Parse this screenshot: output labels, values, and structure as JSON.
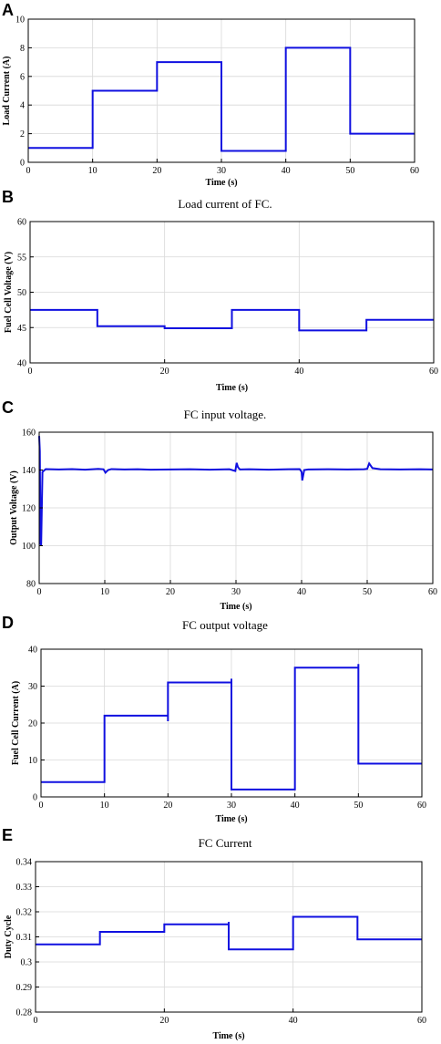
{
  "chart_data": [
    {
      "type": "line",
      "panel": "A",
      "caption": "Load current of FC.",
      "xlabel": "Time (s)",
      "ylabel": "Load Current (A)",
      "xlim": [
        0,
        60
      ],
      "ylim": [
        0,
        10
      ],
      "xticks": [
        0,
        10,
        20,
        30,
        40,
        50,
        60
      ],
      "yticks": [
        0,
        2,
        4,
        6,
        8,
        10
      ],
      "grid": true,
      "series": [
        {
          "x": [
            0,
            10,
            10,
            20,
            20,
            30,
            30,
            40,
            40,
            50,
            50,
            60
          ],
          "y": [
            1,
            1,
            5,
            5,
            7,
            7,
            0.8,
            0.8,
            8,
            8,
            2,
            2
          ]
        }
      ]
    },
    {
      "type": "line",
      "panel": "B",
      "caption": "FC input voltage.",
      "xlabel": "Time (s)",
      "ylabel": "Fuel Cell Voltage (V)",
      "xlim": [
        0,
        60
      ],
      "ylim": [
        40,
        60
      ],
      "xticks": [
        0,
        20,
        40,
        60
      ],
      "yticks": [
        40,
        45,
        50,
        55,
        60
      ],
      "grid": true,
      "series": [
        {
          "x": [
            0,
            10,
            10,
            20,
            20,
            30,
            30,
            40,
            40,
            50,
            50,
            60
          ],
          "y": [
            47.5,
            47.5,
            45.2,
            45.2,
            44.9,
            44.9,
            47.5,
            47.5,
            44.6,
            44.6,
            46.1,
            46.1
          ]
        }
      ]
    },
    {
      "type": "line",
      "panel": "C",
      "caption": "FC output voltage",
      "xlabel": "Time (s)",
      "ylabel": "Output Voltage (V)",
      "xlim": [
        0,
        60
      ],
      "ylim": [
        80,
        160
      ],
      "xticks": [
        0,
        10,
        20,
        30,
        40,
        50,
        60
      ],
      "yticks": [
        80,
        100,
        120,
        140,
        160
      ],
      "grid": true,
      "series": [
        {
          "x": [
            0,
            0.1,
            0.2,
            0.3,
            0.5,
            1,
            3,
            5,
            7,
            9,
            9.8,
            10.1,
            10.5,
            11,
            13,
            15,
            17,
            20,
            23,
            26,
            29,
            29.9,
            30.1,
            30.3,
            30.6,
            32,
            35,
            38,
            39.7,
            40,
            40.1,
            40.4,
            41,
            44,
            47,
            49.5,
            50,
            50.3,
            50.8,
            52,
            55,
            58,
            60
          ],
          "y": [
            158,
            150,
            101,
            100,
            139,
            140.5,
            140.3,
            140.5,
            140.2,
            140.6,
            140.4,
            138.6,
            140,
            140.5,
            140.3,
            140.4,
            140.2,
            140.3,
            140.4,
            140.2,
            140.4,
            139.5,
            143.8,
            141.5,
            140.3,
            140.4,
            140.2,
            140.4,
            140.5,
            139,
            134.5,
            140,
            140.3,
            140.4,
            140.3,
            140.4,
            140.6,
            143.5,
            141,
            140.4,
            140.3,
            140.4,
            140.3
          ]
        }
      ]
    },
    {
      "type": "line",
      "panel": "D",
      "caption": "FC Current",
      "xlabel": "Time (s)",
      "ylabel": "Fuel Cell Current (A)",
      "xlim": [
        0,
        60
      ],
      "ylim": [
        0,
        40
      ],
      "xticks": [
        0,
        10,
        20,
        30,
        40,
        50,
        60
      ],
      "yticks": [
        0,
        10,
        20,
        30,
        40
      ],
      "grid": true,
      "series": [
        {
          "x": [
            0,
            10,
            10,
            20,
            20,
            20,
            30,
            30,
            30,
            40,
            40,
            50,
            50,
            50,
            60
          ],
          "y": [
            4,
            4,
            22,
            22,
            20.5,
            31,
            31,
            32,
            2,
            2,
            35,
            35,
            36,
            9,
            9
          ]
        }
      ]
    },
    {
      "type": "line",
      "panel": "E",
      "caption": "",
      "xlabel": "Time (s)",
      "ylabel": "Duty Cycle",
      "xlim": [
        0,
        60
      ],
      "ylim": [
        0.28,
        0.34
      ],
      "xticks": [
        0,
        20,
        40,
        60
      ],
      "yticks": [
        0.28,
        0.29,
        0.3,
        0.31,
        0.32,
        0.33,
        0.34
      ],
      "grid": true,
      "series": [
        {
          "x": [
            0,
            10,
            10,
            20,
            20,
            30,
            30,
            30,
            40,
            40,
            50,
            50,
            60
          ],
          "y": [
            0.307,
            0.307,
            0.312,
            0.312,
            0.315,
            0.315,
            0.316,
            0.305,
            0.305,
            0.318,
            0.318,
            0.309,
            0.309
          ]
        }
      ]
    }
  ]
}
